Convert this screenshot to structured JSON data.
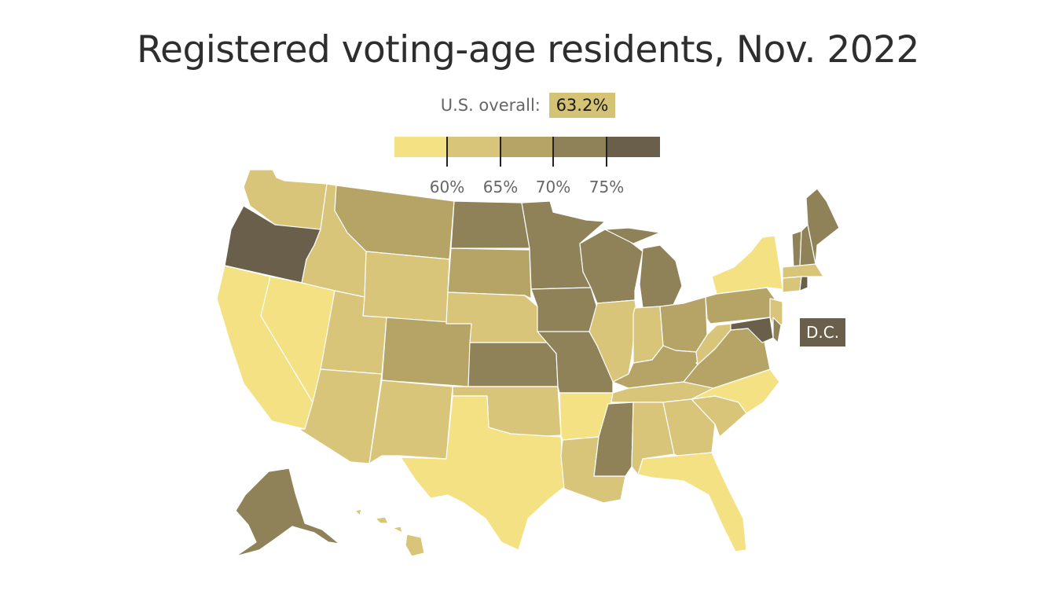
{
  "title": "Registered voting-age residents, Nov. 2022",
  "overall": {
    "label": "U.S. overall:",
    "value": "63.2%"
  },
  "legend": {
    "bins": [
      {
        "color": "#f4e183"
      },
      {
        "color": "#d8c57a"
      },
      {
        "color": "#b5a466"
      },
      {
        "color": "#8f8259"
      },
      {
        "color": "#6a5f4a"
      }
    ],
    "ticks": [
      "60%",
      "65%",
      "70%",
      "75%"
    ]
  },
  "dc_label": "D.C.",
  "colors": {
    "bin1": "#f4e183",
    "bin2": "#d8c57a",
    "bin3": "#b5a466",
    "bin4": "#8f8259",
    "bin5": "#6a5f4a",
    "border": "#ffffff"
  }
}
